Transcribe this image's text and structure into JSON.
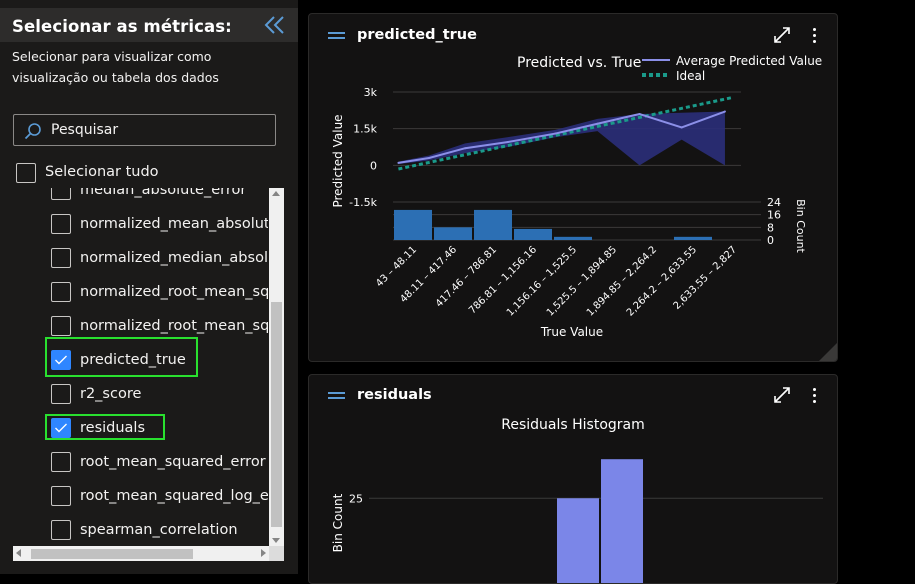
{
  "sidebar": {
    "title": "Selecionar as métricas:",
    "description": "Selecionar para visualizar como visualização ou tabela dos dados",
    "search": {
      "placeholder": "Pesquisar",
      "value": ""
    },
    "select_all": {
      "label": "Selecionar tudo",
      "checked": false
    },
    "metrics": [
      {
        "label": "median_absolute_error",
        "checked": false
      },
      {
        "label": "normalized_mean_absolute_error",
        "checked": false
      },
      {
        "label": "normalized_median_absolute_error",
        "checked": false
      },
      {
        "label": "normalized_root_mean_squared_error",
        "checked": false
      },
      {
        "label": "normalized_root_mean_squared_log_error",
        "checked": false
      },
      {
        "label": "predicted_true",
        "checked": true
      },
      {
        "label": "r2_score",
        "checked": false
      },
      {
        "label": "residuals",
        "checked": true
      },
      {
        "label": "root_mean_squared_error",
        "checked": false
      },
      {
        "label": "root_mean_squared_log_error",
        "checked": false
      },
      {
        "label": "spearman_correlation",
        "checked": false
      }
    ]
  },
  "cards": {
    "predicted_true": {
      "title": "predicted_true"
    },
    "residuals": {
      "title": "residuals"
    }
  },
  "colors": {
    "accent": "#2f86ff",
    "highlight": "#29e02f",
    "line": "#8b8fe8",
    "band": "#2b2f7a",
    "ideal": "#1a9a8a",
    "bar": "#2c6fb4",
    "residual_bar": "#7b86e8"
  },
  "chart_data": [
    {
      "type": "line",
      "title": "Predicted vs. True",
      "xlabel": "True Value",
      "ylabel": "Predicted Value",
      "y2label": "Bin Count",
      "ylim": [
        -1500,
        3000
      ],
      "y_ticks": [
        "3k",
        "1.5k",
        "0",
        "-1.5k"
      ],
      "y_tick_values": [
        3000,
        1500,
        0,
        -1500
      ],
      "legend": [
        "Average Predicted Value",
        "Ideal"
      ],
      "legend_position": "top-right",
      "categories": [
        "43 – 48.11",
        "48.11 – 417.46",
        "417.46 – 786.81",
        "786.81 – 1,156.16",
        "1,156.16 – 1,525.5",
        "1,525.5 – 1,894.85",
        "1,894.85 – 2,264.2",
        "2,264.2 – 2,633.55",
        "2,633.55 – 2,827"
      ],
      "series": [
        {
          "name": "Average Predicted Value",
          "x": [
            45,
            300,
            600,
            950,
            1350,
            1700,
            2050,
            2400,
            2760
          ],
          "values": [
            100,
            300,
            700,
            950,
            1300,
            1700,
            2100,
            1550,
            2200
          ]
        },
        {
          "name": "Ideal",
          "x": [
            45,
            2827
          ],
          "values": [
            -150,
            2780
          ]
        }
      ],
      "band": {
        "x": [
          45,
          300,
          600,
          950,
          1350,
          1700,
          2050,
          2400,
          2760
        ],
        "upper": [
          150,
          400,
          900,
          1150,
          1450,
          1900,
          2100,
          2150,
          2200
        ],
        "lower": [
          50,
          200,
          500,
          750,
          1150,
          1400,
          0,
          1050,
          0
        ]
      },
      "histogram": {
        "ylim": [
          0,
          24
        ],
        "y_ticks": [
          "24",
          "16",
          "8",
          "0"
        ],
        "y_tick_values": [
          24,
          16,
          8,
          0
        ],
        "values": [
          19,
          8,
          19,
          7,
          2,
          0,
          0,
          2,
          0
        ]
      }
    },
    {
      "type": "bar",
      "title": "Residuals Histogram",
      "ylabel": "Bin Count",
      "y_ticks": [
        "25"
      ],
      "y_tick_values": [
        25
      ],
      "ylim": [
        0,
        40
      ],
      "values": [
        0,
        0,
        0,
        0,
        25,
        36,
        0,
        0,
        0
      ]
    }
  ]
}
